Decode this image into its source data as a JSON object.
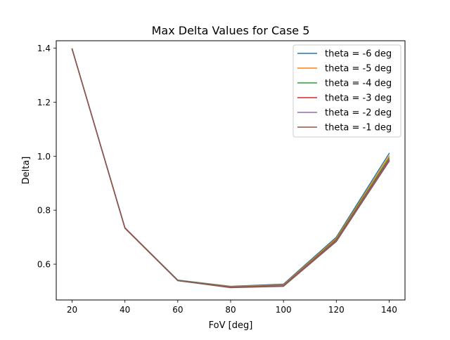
{
  "chart_data": {
    "type": "line",
    "title": "Max Delta Values for Case 5",
    "xlabel": "FoV [deg]",
    "ylabel": "Delta]",
    "x": [
      20,
      40,
      60,
      80,
      100,
      120,
      140
    ],
    "xticks": [
      20,
      40,
      60,
      80,
      100,
      120,
      140
    ],
    "yticks": [
      0.6,
      0.8,
      1.0,
      1.2,
      1.4
    ],
    "ytick_labels": [
      "0.6",
      "0.8",
      "1.0",
      "1.2",
      "1.4"
    ],
    "xlim": [
      14,
      146
    ],
    "ylim": [
      0.4675,
      1.4275
    ],
    "grid": false,
    "legend_location": "upper right",
    "series": [
      {
        "name": "theta = -6 deg",
        "color": "#1f77b4",
        "values": [
          1.397,
          0.735,
          0.541,
          0.518,
          0.526,
          0.7,
          1.01
        ]
      },
      {
        "name": "theta = -5 deg",
        "color": "#ff7f0e",
        "values": [
          1.397,
          0.735,
          0.54,
          0.517,
          0.523,
          0.695,
          1.0
        ]
      },
      {
        "name": "theta = -4 deg",
        "color": "#2ca02c",
        "values": [
          1.397,
          0.734,
          0.54,
          0.516,
          0.521,
          0.691,
          0.993
        ]
      },
      {
        "name": "theta = -3 deg",
        "color": "#d62728",
        "values": [
          1.397,
          0.734,
          0.539,
          0.515,
          0.52,
          0.688,
          0.987
        ]
      },
      {
        "name": "theta = -2 deg",
        "color": "#9467bd",
        "values": [
          1.397,
          0.734,
          0.539,
          0.514,
          0.519,
          0.686,
          0.984
        ]
      },
      {
        "name": "theta = -1 deg",
        "color": "#8c564b",
        "values": [
          1.397,
          0.733,
          0.539,
          0.513,
          0.518,
          0.684,
          0.981
        ]
      }
    ]
  }
}
